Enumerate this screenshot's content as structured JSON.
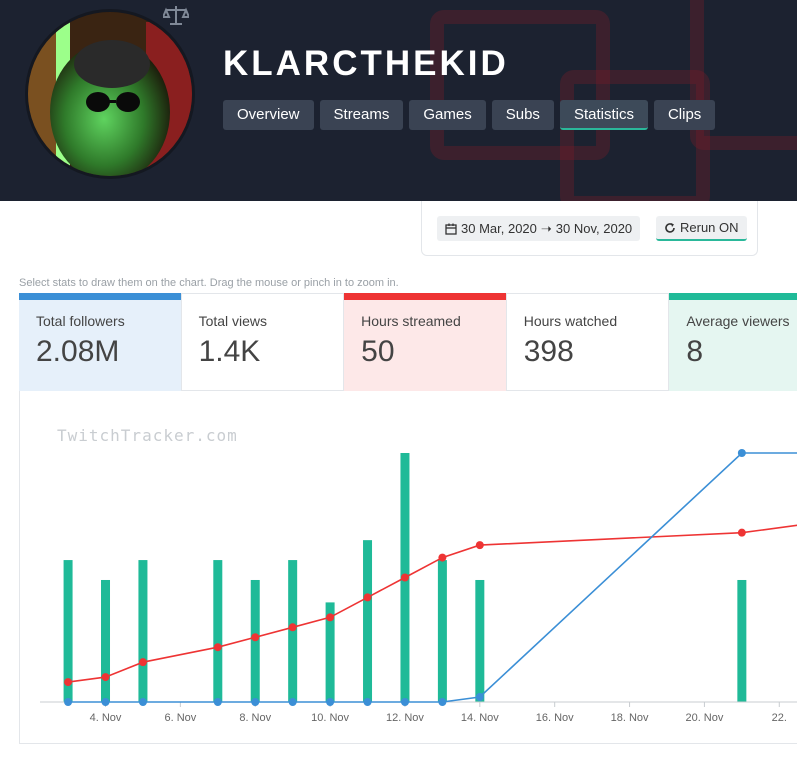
{
  "channel": {
    "name": "KLARCTHEKID"
  },
  "tabs": [
    {
      "label": "Overview",
      "active": false
    },
    {
      "label": "Streams",
      "active": false
    },
    {
      "label": "Games",
      "active": false
    },
    {
      "label": "Subs",
      "active": false
    },
    {
      "label": "Statistics",
      "active": true
    },
    {
      "label": "Clips",
      "active": false
    }
  ],
  "date_range": {
    "start": "30 Mar, 2020",
    "end": "30 Nov, 2020",
    "rerun_label": "Rerun ON"
  },
  "hint": "Select stats to draw them on the chart. Drag the mouse or pinch in to zoom in.",
  "stats": [
    {
      "label": "Total followers",
      "value": "2.08M",
      "color": "#3b8fd6",
      "bg": "#e6f0fa"
    },
    {
      "label": "Total views",
      "value": "1.4K",
      "color": "",
      "bg": "#ffffff"
    },
    {
      "label": "Hours streamed",
      "value": "50",
      "color": "#ee3434",
      "bg": "#fde8e8"
    },
    {
      "label": "Hours watched",
      "value": "398",
      "color": "",
      "bg": "#ffffff"
    },
    {
      "label": "Average viewers",
      "value": "8",
      "color": "#1fba98",
      "bg": "#e5f6f1"
    }
  ],
  "watermark": "TwitchTracker.com",
  "chart_data": {
    "type": "bar",
    "x_ticks": [
      "4. Nov",
      "6. Nov",
      "8. Nov",
      "10. Nov",
      "12. Nov",
      "14. Nov",
      "16. Nov",
      "18. Nov",
      "20. Nov",
      "22."
    ],
    "x_tick_days": [
      4,
      6,
      8,
      10,
      12,
      14,
      16,
      18,
      20,
      22
    ],
    "x_range_days": [
      2.25,
      22.5
    ],
    "series": [
      {
        "name": "Hours streamed",
        "type": "bar",
        "color": "#1fba98",
        "points": [
          {
            "day": 3,
            "value": 0.57
          },
          {
            "day": 4,
            "value": 0.49
          },
          {
            "day": 5,
            "value": 0.57
          },
          {
            "day": 7,
            "value": 0.57
          },
          {
            "day": 8,
            "value": 0.49
          },
          {
            "day": 9,
            "value": 0.57
          },
          {
            "day": 10,
            "value": 0.4
          },
          {
            "day": 11,
            "value": 0.65
          },
          {
            "day": 12,
            "value": 1.0
          },
          {
            "day": 13,
            "value": 0.57
          },
          {
            "day": 14,
            "value": 0.49
          },
          {
            "day": 21,
            "value": 0.49
          }
        ]
      },
      {
        "name": "Hours streamed (cumulative)",
        "type": "line",
        "color": "#ee3434",
        "points": [
          {
            "day": 3,
            "value": 0.08
          },
          {
            "day": 4,
            "value": 0.1
          },
          {
            "day": 5,
            "value": 0.16
          },
          {
            "day": 7,
            "value": 0.22
          },
          {
            "day": 8,
            "value": 0.26
          },
          {
            "day": 9,
            "value": 0.3
          },
          {
            "day": 10,
            "value": 0.34
          },
          {
            "day": 11,
            "value": 0.42
          },
          {
            "day": 12,
            "value": 0.5
          },
          {
            "day": 13,
            "value": 0.58
          },
          {
            "day": 14,
            "value": 0.63
          },
          {
            "day": 21,
            "value": 0.68
          },
          {
            "day": 22.5,
            "value": 0.71
          }
        ]
      },
      {
        "name": "Total followers",
        "type": "line",
        "color": "#3b8fd6",
        "points": [
          {
            "day": 3,
            "value": 0.0
          },
          {
            "day": 4,
            "value": 0.0
          },
          {
            "day": 5,
            "value": 0.0
          },
          {
            "day": 7,
            "value": 0.0
          },
          {
            "day": 8,
            "value": 0.0
          },
          {
            "day": 9,
            "value": 0.0
          },
          {
            "day": 10,
            "value": 0.0
          },
          {
            "day": 11,
            "value": 0.0
          },
          {
            "day": 12,
            "value": 0.0
          },
          {
            "day": 13,
            "value": 0.0
          },
          {
            "day": 14,
            "value": 0.02
          },
          {
            "day": 21,
            "value": 1.0
          },
          {
            "day": 22.5,
            "value": 1.0
          }
        ]
      }
    ],
    "grid": false,
    "legend": "none"
  }
}
